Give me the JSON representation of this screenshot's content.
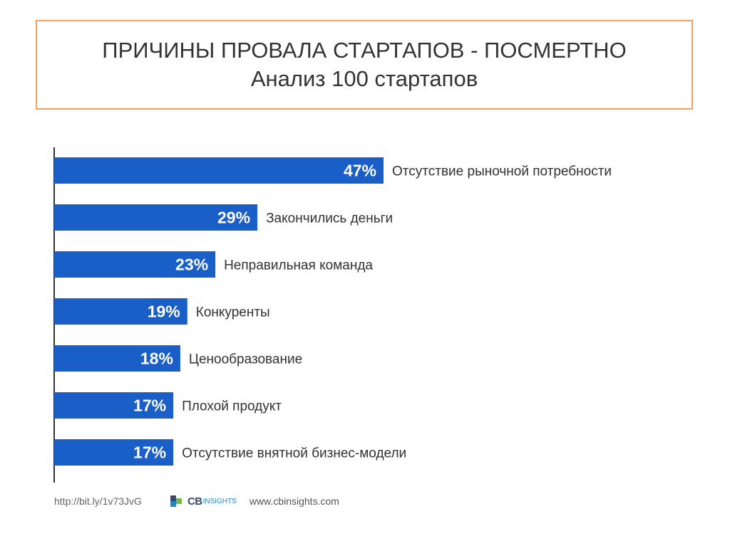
{
  "title": {
    "line1": "ПРИЧИНЫ ПРОВАЛА СТАРТАПОВ - ПОСМЕРТНО",
    "line2": "Анализ 100 стартапов"
  },
  "chart_data": {
    "type": "bar",
    "orientation": "horizontal",
    "categories": [
      "Отсутствие рыночной потребности",
      "Закончились деньги",
      "Неправильная команда",
      "Конкуренты",
      "Ценообразование",
      "Плохой продукт",
      "Отсутствие внятной бизнес-модели"
    ],
    "values": [
      47,
      29,
      23,
      19,
      18,
      17,
      17
    ],
    "value_labels": [
      "47%",
      "29%",
      "23%",
      "19%",
      "18%",
      "17%",
      "17%"
    ],
    "unit": "%",
    "xlim": [
      0,
      47
    ],
    "bar_color": "#1a5fc8",
    "value_label_color": "#ffffff",
    "category_label_color": "#333333"
  },
  "footer": {
    "url": "http://bit.ly/1v73JvG",
    "logo_text": "CB",
    "logo_suffix": "INSIGHTS",
    "website": "www.cbinsights.com"
  },
  "colors": {
    "title_border": "#f0a060",
    "logo_blue": "#1e88c8",
    "logo_dark": "#3a4a6a",
    "logo_green": "#7ab648"
  }
}
